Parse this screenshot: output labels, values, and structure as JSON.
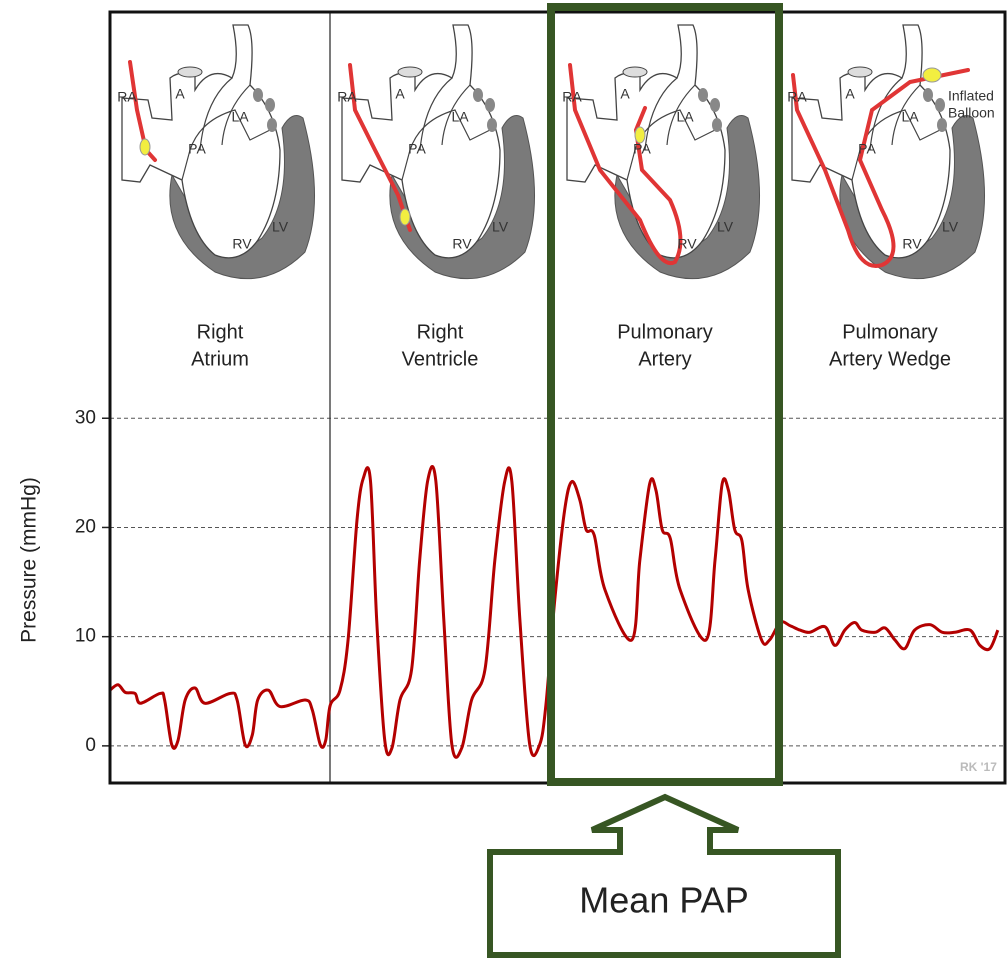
{
  "chart_data": {
    "type": "line",
    "y_label": "Pressure (mmHg)",
    "panels": [
      [
        "Right",
        "Atrium"
      ],
      [
        "Right",
        "Ventricle"
      ],
      [
        "Pulmonary",
        "Artery"
      ],
      [
        "Pulmonary",
        "Artery Wedge"
      ]
    ],
    "heart_labels": [
      "RA",
      "A",
      "PA",
      "LA",
      "RV",
      "LV"
    ],
    "balloon_label": [
      "Inflated",
      "Balloon"
    ],
    "credit": "RK '17",
    "callout": "Mean PAP",
    "xlim": [
      0,
      100
    ],
    "ylim": [
      -3.4,
      67.2
    ],
    "yticks": [
      0,
      10,
      20,
      30
    ],
    "grid": true,
    "x": [
      0,
      0.9,
      1.7,
      2.8,
      3.4,
      5.6,
      6.1,
      6.9,
      7.6,
      8.4,
      9.5,
      10.6,
      13.4,
      14.2,
      15.1,
      15.9,
      16.5,
      17.7,
      19.0,
      21.8,
      22.6,
      23.5,
      24.1,
      24.6,
      25.7,
      26.6,
      27.6,
      28.3,
      29.1,
      29.8,
      30.7,
      31.5,
      32.4,
      33.7,
      34.6,
      35.5,
      36.4,
      37.3,
      38.2,
      39.3,
      40.4,
      41.9,
      43.0,
      44.1,
      44.9,
      45.8,
      46.9,
      48.0,
      48.7,
      49.7,
      50.8,
      51.6,
      52.5,
      53.2,
      54.1,
      55.3,
      58.3,
      59.2,
      60.3,
      61.0,
      61.7,
      62.6,
      63.7,
      66.6,
      67.6,
      68.4,
      69.1,
      69.8,
      70.6,
      71.3,
      72.8,
      73.7,
      74.9,
      76.0,
      77.1,
      78.2,
      79.9,
      81.0,
      82.1,
      83.2,
      84.0,
      85.5,
      86.6,
      87.7,
      88.8,
      89.9,
      91.6,
      93.0,
      94.4,
      96.1,
      97.2,
      98.3,
      99.2
    ],
    "series": [
      {
        "color": "#b30000",
        "values": [
          5.1,
          5.6,
          4.9,
          4.8,
          3.9,
          4.8,
          4.2,
          0.1,
          0.5,
          4.2,
          5.3,
          3.9,
          4.8,
          4.2,
          0.1,
          1.0,
          4.2,
          5.1,
          3.6,
          4.2,
          3.3,
          0.1,
          0.5,
          3.7,
          5.1,
          9.7,
          20.7,
          24.5,
          24.3,
          11.5,
          0.5,
          -0.2,
          4.2,
          7.0,
          17.0,
          24.3,
          24.3,
          11.5,
          0.1,
          -0.2,
          4.2,
          7.0,
          17.0,
          24.2,
          24.2,
          11.5,
          0.1,
          0.1,
          3.7,
          13.4,
          21.6,
          24.2,
          22.5,
          19.8,
          19.3,
          14.3,
          9.7,
          17.0,
          24.0,
          23.4,
          19.8,
          19.0,
          14.3,
          9.7,
          17.0,
          24.0,
          23.4,
          19.8,
          18.8,
          14.3,
          9.7,
          9.7,
          11.3,
          11.0,
          10.6,
          10.4,
          10.9,
          9.2,
          10.6,
          11.3,
          10.6,
          10.4,
          10.8,
          9.7,
          8.9,
          10.6,
          11.1,
          10.4,
          10.4,
          10.6,
          9.2,
          8.9,
          10.6
        ]
      }
    ]
  }
}
